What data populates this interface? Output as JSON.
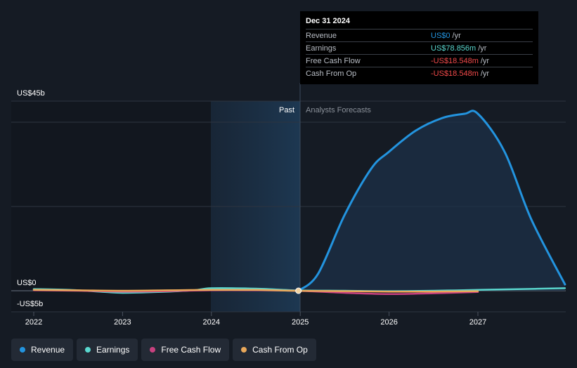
{
  "chart_data": {
    "type": "line",
    "y_unit_labels": {
      "top": "US$45b",
      "zero": "US$0",
      "bottom": "-US$5b"
    },
    "ylim": [
      -5,
      45
    ],
    "x_ticks": [
      "2022",
      "2023",
      "2024",
      "2025",
      "2026",
      "2027"
    ],
    "xlim": [
      2021.8,
      2027.98
    ],
    "divider_year": 2024.98,
    "period_labels": {
      "past": "Past",
      "forecast": "Analysts Forecasts"
    },
    "series": [
      {
        "name": "Revenue",
        "color": "#2394df",
        "x": [
          2024.98,
          2025.2,
          2025.5,
          2025.8,
          2026.0,
          2026.3,
          2026.6,
          2026.85,
          2027.0,
          2027.3,
          2027.6,
          2027.98
        ],
        "values": [
          0,
          4,
          18,
          29,
          33,
          38,
          41,
          42,
          42,
          33,
          17,
          1.5
        ]
      },
      {
        "name": "Earnings",
        "color": "#5ad8cf",
        "x": [
          2022.0,
          2022.4,
          2022.8,
          2023.0,
          2023.4,
          2023.8,
          2024.0,
          2024.5,
          2024.98,
          2025.5,
          2026.0,
          2026.5,
          2027.0,
          2027.5,
          2027.98
        ],
        "values": [
          0.4,
          0.2,
          -0.3,
          -0.5,
          -0.3,
          0.1,
          0.6,
          0.5,
          0.08,
          0.0,
          -0.1,
          0.0,
          0.2,
          0.4,
          0.6
        ]
      },
      {
        "name": "Free Cash Flow",
        "color": "#c8417f",
        "x": [
          2022.0,
          2022.5,
          2023.0,
          2023.5,
          2024.0,
          2024.5,
          2024.98,
          2025.5,
          2026.0,
          2026.5,
          2027.0
        ],
        "values": [
          0.1,
          0.0,
          -0.2,
          -0.1,
          0.1,
          0.1,
          -0.02,
          -0.5,
          -0.8,
          -0.6,
          -0.3
        ]
      },
      {
        "name": "Cash From Op",
        "color": "#e9a85a",
        "x": [
          2022.0,
          2022.5,
          2023.0,
          2023.5,
          2024.0,
          2024.5,
          2024.98,
          2025.5,
          2026.0,
          2026.5,
          2027.0
        ],
        "values": [
          0.2,
          0.1,
          0.0,
          0.1,
          0.2,
          0.2,
          -0.02,
          -0.1,
          -0.2,
          -0.2,
          -0.1
        ]
      }
    ],
    "tooltip": {
      "date": "Dec 31 2024",
      "rows": [
        {
          "name": "Revenue",
          "value": "US$0",
          "unit": "/yr",
          "color": "#2394df"
        },
        {
          "name": "Earnings",
          "value": "US$78.856m",
          "unit": "/yr",
          "color": "#5ad8cf"
        },
        {
          "name": "Free Cash Flow",
          "value": "-US$18.548m",
          "unit": "/yr",
          "color": "#f24a4a"
        },
        {
          "name": "Cash From Op",
          "value": "-US$18.548m",
          "unit": "/yr",
          "color": "#f24a4a"
        }
      ]
    }
  },
  "legend": [
    {
      "label": "Revenue",
      "color": "#2394df"
    },
    {
      "label": "Earnings",
      "color": "#5ad8cf"
    },
    {
      "label": "Free Cash Flow",
      "color": "#c8417f"
    },
    {
      "label": "Cash From Op",
      "color": "#e9a85a"
    }
  ]
}
